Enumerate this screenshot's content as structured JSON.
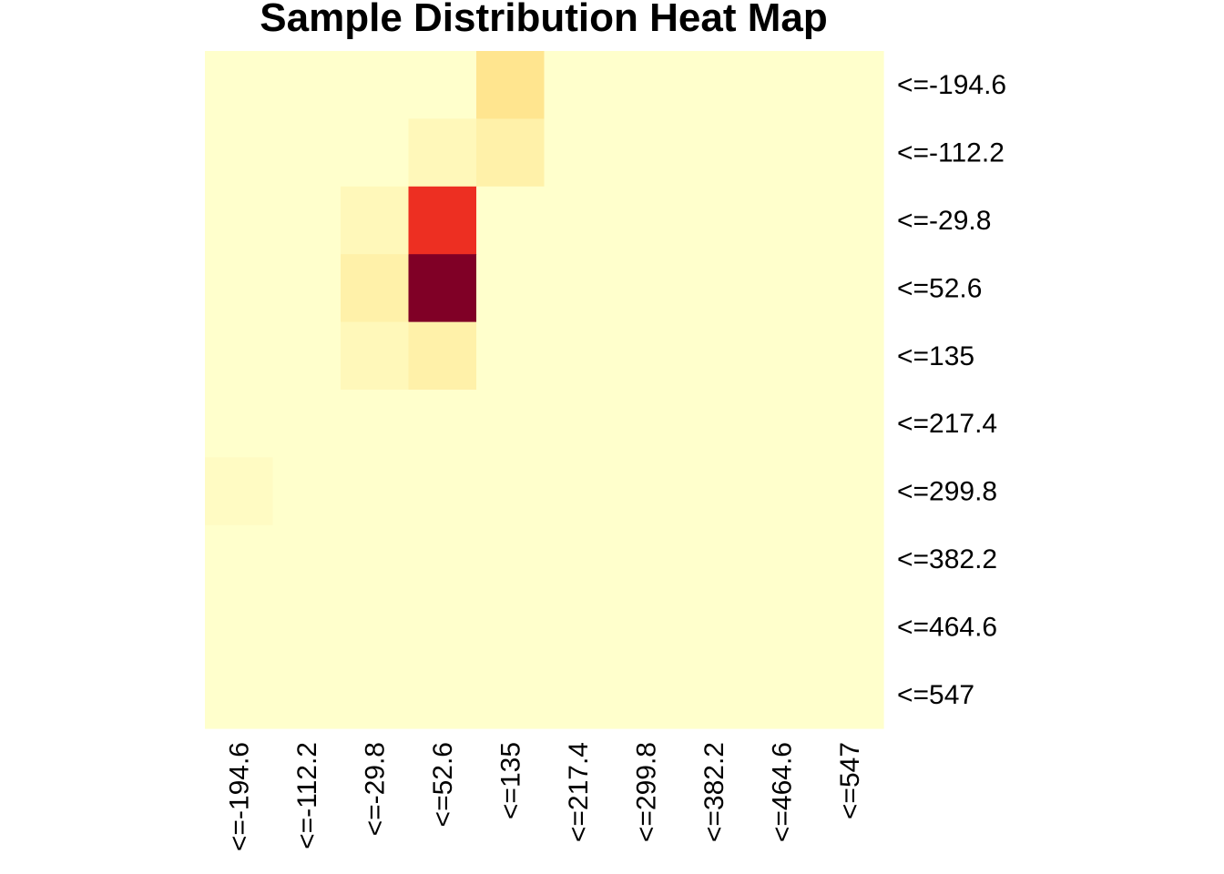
{
  "chart_data": {
    "type": "heatmap",
    "title": "Sample Distribution Heat Map",
    "x_categories": [
      "<=-194.6",
      "<=-112.2",
      "<=-29.8",
      "<=52.6",
      "<=135",
      "<=217.4",
      "<=299.8",
      "<=382.2",
      "<=464.6",
      "<=547"
    ],
    "y_categories": [
      "<=-194.6",
      "<=-112.2",
      "<=-29.8",
      "<=52.6",
      "<=135",
      "<=217.4",
      "<=299.8",
      "<=382.2",
      "<=464.6",
      "<=547"
    ],
    "values": [
      [
        0,
        0,
        0,
        0,
        7,
        0,
        0,
        0,
        0,
        0
      ],
      [
        0,
        0,
        0,
        2,
        4,
        0,
        0,
        0,
        0,
        0
      ],
      [
        0,
        0,
        2,
        28,
        0,
        0,
        0,
        0,
        0,
        0
      ],
      [
        0,
        0,
        4,
        40,
        0,
        0,
        0,
        0,
        0,
        0
      ],
      [
        0,
        0,
        2,
        4,
        0,
        0,
        0,
        0,
        0,
        0
      ],
      [
        0,
        0,
        0,
        0,
        0,
        0,
        0,
        0,
        0,
        0
      ],
      [
        1,
        0,
        0,
        0,
        0,
        0,
        0,
        0,
        0,
        0
      ],
      [
        0,
        0,
        0,
        0,
        0,
        0,
        0,
        0,
        0,
        0
      ],
      [
        0,
        0,
        0,
        0,
        0,
        0,
        0,
        0,
        0,
        0
      ],
      [
        0,
        0,
        0,
        0,
        0,
        0,
        0,
        0,
        0,
        0
      ]
    ],
    "color_scale": [
      "#FFFFCC",
      "#FFEDA0",
      "#FED976",
      "#FEB24C",
      "#FD8D3C",
      "#FC4E2A",
      "#E31A1C",
      "#BD0026",
      "#800026"
    ],
    "x_tick_orientation": "vertical",
    "y_labels_position": "right",
    "legend": "none",
    "grid": false
  }
}
